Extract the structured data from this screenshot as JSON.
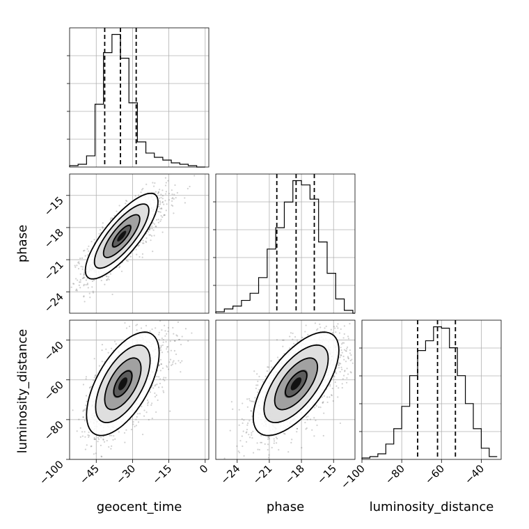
{
  "chart_data": {
    "type": "corner",
    "parameters": [
      "geocent_time",
      "phase",
      "luminosity_distance"
    ],
    "x_tick_labels": {
      "geocent_time": [
        "−45",
        "−30",
        "−15",
        "0"
      ],
      "phase": [
        "−24",
        "−21",
        "−18",
        "−15"
      ],
      "luminosity_distance": [
        "−100",
        "−80",
        "−60",
        "−40"
      ]
    },
    "y_tick_labels": {
      "phase": [
        "−15",
        "−18",
        "−21",
        "−24"
      ],
      "luminosity_distance": [
        "−40",
        "−60",
        "−80",
        "−100"
      ]
    },
    "ranges": {
      "geocent_time": [
        -56,
        1.5
      ],
      "phase": [
        -26.0,
        -13.0
      ],
      "luminosity_distance": [
        -100,
        -30
      ]
    },
    "grid": true,
    "quantiles": {
      "geocent_time": [
        -41.5,
        -35.0,
        -28.5
      ],
      "phase": [
        -20.3,
        -18.5,
        -16.8
      ],
      "luminosity_distance": [
        -72,
        -62,
        -53
      ]
    },
    "histograms": {
      "geocent_time": {
        "bin_edges": [
          -56,
          -52.5,
          -49,
          -45.5,
          -42,
          -38.5,
          -35,
          -31.5,
          -28,
          -24.5,
          -21,
          -17.5,
          -14,
          -10.5,
          -7,
          -3.5,
          0
        ],
        "counts": [
          1,
          2,
          8,
          45,
          82,
          95,
          78,
          46,
          18,
          10,
          7,
          5,
          3,
          2,
          1,
          0
        ]
      },
      "phase": {
        "bin_edges": [
          -26,
          -25.2,
          -24.4,
          -23.6,
          -22.8,
          -22,
          -21.2,
          -20.4,
          -19.6,
          -18.8,
          -18,
          -17.2,
          -16.4,
          -15.6,
          -14.8,
          -14,
          -13.2,
          -13
        ],
        "counts": [
          1,
          3,
          5,
          9,
          14,
          25,
          45,
          60,
          78,
          93,
          90,
          80,
          50,
          28,
          10,
          2,
          0
        ]
      },
      "luminosity_distance": {
        "bin_edges": [
          -100,
          -96,
          -92,
          -88,
          -84,
          -80,
          -76,
          -72,
          -68,
          -64,
          -60,
          -56,
          -52,
          -48,
          -44,
          -40,
          -36,
          -32
        ],
        "counts": [
          1,
          2,
          4,
          11,
          22,
          38,
          60,
          78,
          85,
          95,
          94,
          80,
          60,
          40,
          22,
          8,
          2
        ]
      }
    },
    "pairs": [
      {
        "x": "geocent_time",
        "y": "phase",
        "mean": [
          -34.5,
          -18.8
        ],
        "correlation": 0.8,
        "std": [
          7.5,
          2.0
        ]
      },
      {
        "x": "geocent_time",
        "y": "luminosity_distance",
        "mean": [
          -34.0,
          -62.0
        ],
        "correlation": 0.6,
        "std": [
          7.5,
          13.0
        ]
      },
      {
        "x": "phase",
        "y": "luminosity_distance",
        "mean": [
          -18.5,
          -62.0
        ],
        "correlation": 0.65,
        "std": [
          2.0,
          13.0
        ]
      }
    ]
  }
}
